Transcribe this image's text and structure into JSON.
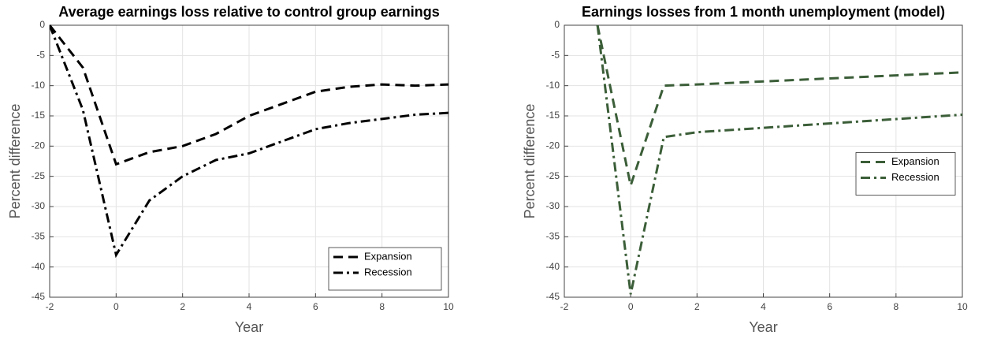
{
  "chart_data": [
    {
      "type": "line",
      "title": "Average earnings loss relative to control group earnings",
      "x_label": "Year",
      "y_label": "Percent difference",
      "x": [
        -2,
        -1,
        0,
        1,
        2,
        3,
        4,
        5,
        6,
        7,
        8,
        9,
        10
      ],
      "series": [
        {
          "name": "Expansion",
          "color": "#000000",
          "linestyle": "dashed",
          "values": [
            0,
            -7,
            -23,
            -21,
            -20,
            -18,
            -15,
            -13,
            -11,
            -10.2,
            -9.8,
            -10,
            -9.8
          ]
        },
        {
          "name": "Recession",
          "color": "#000000",
          "linestyle": "dashdot",
          "values": [
            0,
            -14,
            -38,
            -29,
            -25,
            -22.3,
            -21.2,
            -19.2,
            -17.2,
            -16.2,
            -15.5,
            -14.8,
            -14.5
          ]
        }
      ],
      "xlim": [
        -2,
        10
      ],
      "xticks": [
        -2,
        0,
        2,
        4,
        6,
        8,
        10
      ],
      "ylim": [
        -45,
        0
      ],
      "yticks": [
        -45,
        -40,
        -35,
        -30,
        -25,
        -20,
        -15,
        -10,
        -5,
        0
      ],
      "grid": true,
      "legend": "lower right"
    },
    {
      "type": "line",
      "title": "Earnings losses from 1 month unemployment (model)",
      "x_label": "Year",
      "y_label": "Percent difference",
      "x": [
        -1,
        0,
        1,
        2,
        10
      ],
      "series": [
        {
          "name": "Expansion",
          "color": "#3b5e38",
          "linestyle": "dashed",
          "values": [
            0,
            -26.5,
            -10,
            -9.8,
            -7.8
          ]
        },
        {
          "name": "Recession",
          "color": "#3b5e38",
          "linestyle": "dashdot",
          "values": [
            0,
            -44.5,
            -18.5,
            -17.7,
            -14.8
          ]
        }
      ],
      "xlim": [
        -2,
        10
      ],
      "xticks": [
        -2,
        0,
        2,
        4,
        6,
        8,
        10
      ],
      "ylim": [
        -45,
        0
      ],
      "yticks": [
        -45,
        -40,
        -35,
        -30,
        -25,
        -20,
        -15,
        -10,
        -5,
        0
      ],
      "grid": true,
      "legend": "right"
    }
  ]
}
